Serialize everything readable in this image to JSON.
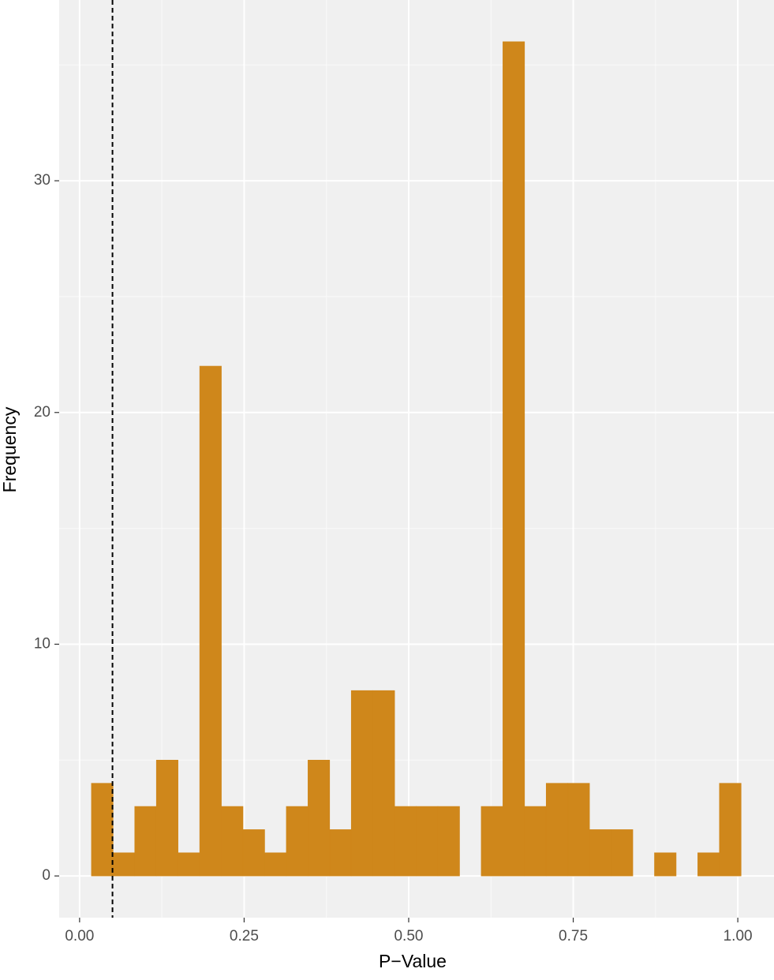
{
  "chart_data": {
    "type": "histogram",
    "x_label": "P−Value",
    "y_label": "Frequency",
    "bins": [
      0.018,
      0.0509,
      0.0838,
      0.1167,
      0.1496,
      0.1825,
      0.2154,
      0.2483,
      0.2812,
      0.3141,
      0.347,
      0.3799,
      0.4128,
      0.4457,
      0.4786,
      0.5115,
      0.5444,
      0.5773,
      0.6102,
      0.6431,
      0.676,
      0.7089,
      0.7418,
      0.7747,
      0.8076,
      0.8405,
      0.8734,
      0.9063,
      0.9392,
      0.9721,
      1.005
    ],
    "counts": [
      4,
      1,
      3,
      5,
      1,
      22,
      3,
      2,
      1,
      3,
      5,
      2,
      8,
      8,
      3,
      3,
      3,
      0,
      3,
      36,
      3,
      4,
      4,
      2,
      2,
      0,
      1,
      0,
      1,
      4
    ],
    "color": "#cf871b",
    "vline": 0.05,
    "xlim": [
      -0.031,
      1.055
    ],
    "ylim": [
      -1.8,
      37.8
    ],
    "xticks": [
      {
        "value": 0,
        "label": "0.00"
      },
      {
        "value": 0.25,
        "label": "0.25"
      },
      {
        "value": 0.5,
        "label": "0.50"
      },
      {
        "value": 0.75,
        "label": "0.75"
      },
      {
        "value": 1,
        "label": "1.00"
      }
    ],
    "yticks": [
      0,
      10,
      20,
      30
    ],
    "minor_xticks": [
      0.125,
      0.375,
      0.625,
      0.875
    ],
    "minor_yticks": [
      5,
      15,
      25,
      35
    ],
    "grid": true
  }
}
